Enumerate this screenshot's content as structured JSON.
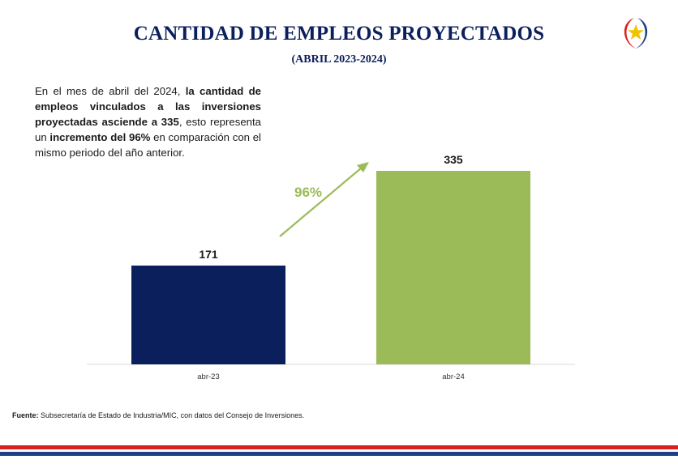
{
  "header": {
    "title": "CANTIDAD DE EMPLEOS PROYECTADOS",
    "subtitle": "(ABRIL 2023-2024)"
  },
  "description": {
    "part1": "En el mes de abril del 2024, ",
    "bold1": "la cantidad de empleos vinculados a las inversiones proyectadas asciende a 335",
    "part2": ", esto representa un ",
    "bold2": "incremento del 96%",
    "part3": " en comparación con el mismo periodo del  año anterior."
  },
  "source": {
    "label": "Fuente:",
    "text": " Subsecretaría de Estado de Industria/MIC, con datos del Consejo de Inversiones."
  },
  "chart_data": {
    "type": "bar",
    "categories": [
      "abr-23",
      "abr-24"
    ],
    "values": [
      171,
      335
    ],
    "colors": [
      "#0b1f5c",
      "#9bbb59"
    ],
    "growth_label": "96%",
    "growth_color": "#9bbb59",
    "title": "",
    "xlabel": "",
    "ylabel": "",
    "ylim": [
      0,
      335
    ]
  },
  "colors": {
    "title": "#0b1f5c",
    "stripe_red": "#d7201f",
    "stripe_blue": "#1f3f86"
  }
}
